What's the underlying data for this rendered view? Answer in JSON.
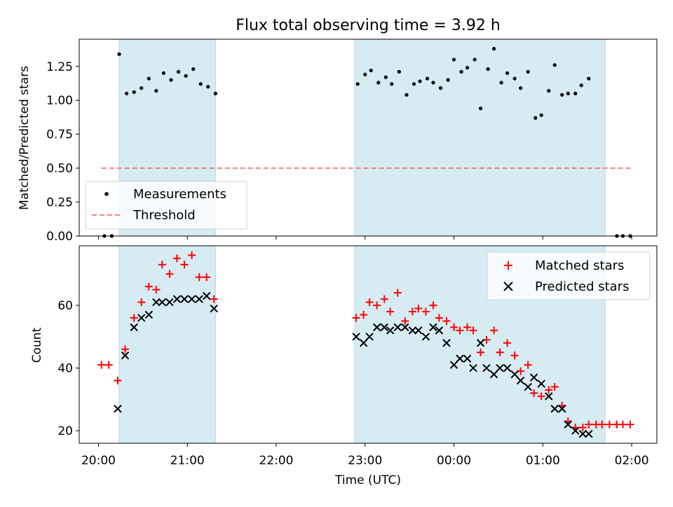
{
  "title": "Flux total observing time = 3.92 h",
  "chart_data": [
    {
      "type": "scatter",
      "panel": "top",
      "title": "Flux total observing time = 3.92 h",
      "xlabel": "",
      "ylabel": "Matched/Predicted stars",
      "xlim": [
        "19:47",
        "02:17"
      ],
      "ylim": [
        0,
        1.45
      ],
      "yticks": [
        "0.00",
        "0.25",
        "0.50",
        "0.75",
        "1.00",
        "1.25"
      ],
      "grid": false,
      "legend_position": "lower-left",
      "shaded_intervals": [
        [
          "20:14",
          "21:19"
        ],
        [
          "22:53",
          "01:42"
        ]
      ],
      "threshold": {
        "name": "Threshold",
        "value": 0.5,
        "x_range": [
          "20:02",
          "02:00"
        ],
        "color": "#f08080"
      },
      "series": [
        {
          "name": "Measurements",
          "marker": "dot",
          "color": "#000000",
          "points": [
            [
              "20:04",
              0.0
            ],
            [
              "20:09",
              0.0
            ],
            [
              "20:14",
              1.34
            ],
            [
              "20:19",
              1.05
            ],
            [
              "20:24",
              1.06
            ],
            [
              "20:29",
              1.09
            ],
            [
              "20:34",
              1.16
            ],
            [
              "20:39",
              1.07
            ],
            [
              "20:44",
              1.2
            ],
            [
              "20:49",
              1.15
            ],
            [
              "20:54",
              1.21
            ],
            [
              "20:59",
              1.18
            ],
            [
              "21:04",
              1.23
            ],
            [
              "21:09",
              1.12
            ],
            [
              "21:14",
              1.1
            ],
            [
              "21:19",
              1.05
            ],
            [
              "22:55",
              1.12
            ],
            [
              "23:00",
              1.19
            ],
            [
              "23:04",
              1.22
            ],
            [
              "23:09",
              1.13
            ],
            [
              "23:14",
              1.17
            ],
            [
              "23:18",
              1.12
            ],
            [
              "23:23",
              1.21
            ],
            [
              "23:28",
              1.04
            ],
            [
              "23:33",
              1.12
            ],
            [
              "23:37",
              1.14
            ],
            [
              "23:42",
              1.16
            ],
            [
              "23:46",
              1.13
            ],
            [
              "23:51",
              1.09
            ],
            [
              "23:56",
              1.15
            ],
            [
              "00:00",
              1.3
            ],
            [
              "00:05",
              1.21
            ],
            [
              "00:09",
              1.24
            ],
            [
              "00:14",
              1.3
            ],
            [
              "00:18",
              0.94
            ],
            [
              "00:23",
              1.23
            ],
            [
              "00:27",
              1.38
            ],
            [
              "00:32",
              1.13
            ],
            [
              "00:36",
              1.2
            ],
            [
              "00:41",
              1.16
            ],
            [
              "00:45",
              1.09
            ],
            [
              "00:50",
              1.21
            ],
            [
              "00:55",
              0.87
            ],
            [
              "00:59",
              0.89
            ],
            [
              "01:04",
              1.07
            ],
            [
              "01:08",
              1.26
            ],
            [
              "01:13",
              1.04
            ],
            [
              "01:17",
              1.05
            ],
            [
              "01:22",
              1.05
            ],
            [
              "01:26",
              1.11
            ],
            [
              "01:31",
              1.16
            ],
            [
              "01:50",
              0.0
            ],
            [
              "01:54",
              0.0
            ],
            [
              "01:59",
              0.0
            ]
          ]
        }
      ],
      "legend": [
        "Measurements",
        "Threshold"
      ]
    },
    {
      "type": "scatter",
      "panel": "bottom",
      "xlabel": "Time (UTC)",
      "ylabel": "Count",
      "xlim": [
        "19:47",
        "02:17"
      ],
      "ylim": [
        16,
        79
      ],
      "yticks": [
        "20",
        "40",
        "60"
      ],
      "xticks": [
        "20:00",
        "21:00",
        "22:00",
        "23:00",
        "00:00",
        "01:00",
        "02:00"
      ],
      "grid": false,
      "legend_position": "top-right",
      "shaded_intervals": [
        [
          "20:14",
          "21:19"
        ],
        [
          "22:53",
          "01:42"
        ]
      ],
      "series": [
        {
          "name": "Matched stars",
          "marker": "plus",
          "color": "#ff0000",
          "points": [
            [
              "20:02",
              41
            ],
            [
              "20:07",
              41
            ],
            [
              "20:13",
              36
            ],
            [
              "20:18",
              46
            ],
            [
              "20:24",
              56
            ],
            [
              "20:29",
              61
            ],
            [
              "20:34",
              66
            ],
            [
              "20:39",
              65
            ],
            [
              "20:43",
              73
            ],
            [
              "20:48",
              70
            ],
            [
              "20:53",
              75
            ],
            [
              "20:58",
              73
            ],
            [
              "21:03",
              76
            ],
            [
              "21:08",
              69
            ],
            [
              "21:13",
              69
            ],
            [
              "21:18",
              62
            ],
            [
              "22:54",
              56
            ],
            [
              "22:59",
              57
            ],
            [
              "23:03",
              61
            ],
            [
              "23:08",
              60
            ],
            [
              "23:13",
              62
            ],
            [
              "23:17",
              58
            ],
            [
              "23:22",
              64
            ],
            [
              "23:27",
              55
            ],
            [
              "23:32",
              58
            ],
            [
              "23:36",
              59
            ],
            [
              "23:41",
              58
            ],
            [
              "23:46",
              60
            ],
            [
              "23:50",
              56
            ],
            [
              "23:55",
              55
            ],
            [
              "00:00",
              53
            ],
            [
              "00:04",
              52
            ],
            [
              "00:09",
              53
            ],
            [
              "00:13",
              52
            ],
            [
              "00:18",
              45
            ],
            [
              "00:22",
              49
            ],
            [
              "00:27",
              52
            ],
            [
              "00:31",
              45
            ],
            [
              "00:36",
              48
            ],
            [
              "00:41",
              44
            ],
            [
              "00:45",
              39
            ],
            [
              "00:50",
              41
            ],
            [
              "00:54",
              32
            ],
            [
              "00:59",
              31
            ],
            [
              "01:04",
              33
            ],
            [
              "01:08",
              34
            ],
            [
              "01:13",
              28
            ],
            [
              "01:17",
              23
            ],
            [
              "01:22",
              21
            ],
            [
              "01:27",
              21
            ],
            [
              "01:31",
              22
            ],
            [
              "01:36",
              22
            ],
            [
              "01:40",
              22
            ],
            [
              "01:45",
              22
            ],
            [
              "01:50",
              22
            ],
            [
              "01:54",
              22
            ],
            [
              "01:59",
              22
            ]
          ]
        },
        {
          "name": "Predicted stars",
          "marker": "x",
          "color": "#000000",
          "points": [
            [
              "20:13",
              27
            ],
            [
              "20:18",
              44
            ],
            [
              "20:24",
              53
            ],
            [
              "20:29",
              56
            ],
            [
              "20:34",
              57
            ],
            [
              "20:39",
              61
            ],
            [
              "20:43",
              61
            ],
            [
              "20:48",
              61
            ],
            [
              "20:53",
              62
            ],
            [
              "20:58",
              62
            ],
            [
              "21:03",
              62
            ],
            [
              "21:08",
              62
            ],
            [
              "21:13",
              63
            ],
            [
              "21:18",
              59
            ],
            [
              "22:54",
              50
            ],
            [
              "22:59",
              48
            ],
            [
              "23:03",
              50
            ],
            [
              "23:08",
              53
            ],
            [
              "23:13",
              53
            ],
            [
              "23:17",
              52
            ],
            [
              "23:22",
              53
            ],
            [
              "23:27",
              53
            ],
            [
              "23:32",
              52
            ],
            [
              "23:36",
              52
            ],
            [
              "23:41",
              50
            ],
            [
              "23:46",
              53
            ],
            [
              "23:50",
              52
            ],
            [
              "23:55",
              48
            ],
            [
              "00:00",
              41
            ],
            [
              "00:04",
              43
            ],
            [
              "00:09",
              43
            ],
            [
              "00:13",
              40
            ],
            [
              "00:18",
              48
            ],
            [
              "00:22",
              40
            ],
            [
              "00:27",
              38
            ],
            [
              "00:31",
              40
            ],
            [
              "00:36",
              40
            ],
            [
              "00:41",
              38
            ],
            [
              "00:45",
              36
            ],
            [
              "00:50",
              34
            ],
            [
              "00:54",
              37
            ],
            [
              "00:59",
              35
            ],
            [
              "01:04",
              31
            ],
            [
              "01:08",
              27
            ],
            [
              "01:13",
              27
            ],
            [
              "01:17",
              22
            ],
            [
              "01:22",
              20
            ],
            [
              "01:27",
              19
            ],
            [
              "01:31",
              19
            ]
          ]
        }
      ],
      "legend": [
        "Matched stars",
        "Predicted stars"
      ]
    }
  ],
  "colors": {
    "shade": "#add8e6",
    "shade_alpha": 0.5
  }
}
